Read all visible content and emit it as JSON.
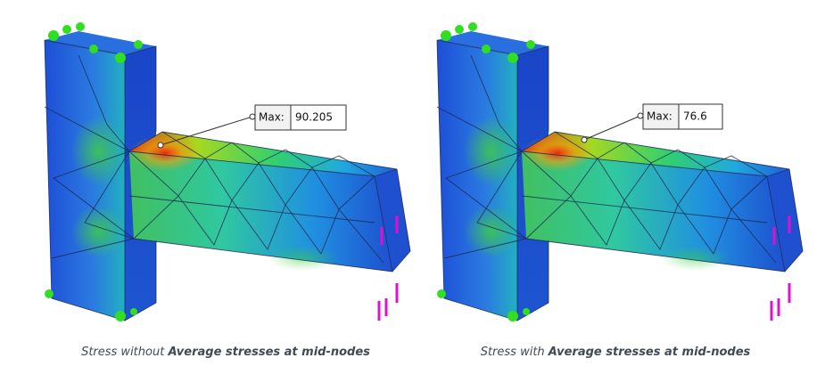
{
  "panels": [
    {
      "max_label": "Max:",
      "max_value": "90.205",
      "caption": {
        "prefix": "Stress without ",
        "emphasis": "Average stresses at mid-nodes"
      }
    },
    {
      "max_label": "Max:",
      "max_value": "76.6",
      "caption": {
        "prefix": "Stress with ",
        "emphasis": "Average stresses at mid-nodes"
      }
    }
  ]
}
